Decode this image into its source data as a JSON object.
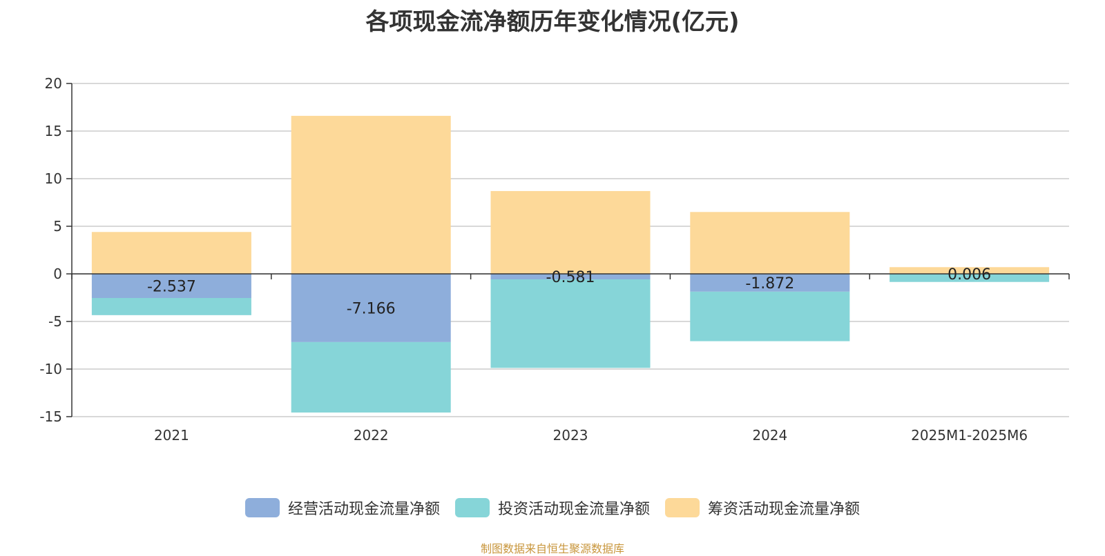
{
  "chart_data": {
    "type": "bar",
    "stacked": true,
    "title": "各项现金流净额历年变化情况(亿元)",
    "xlabel": "",
    "ylabel": "",
    "ylim": [
      -15,
      20
    ],
    "yticks": [
      20,
      15,
      10,
      5,
      0,
      -5,
      -10,
      -15
    ],
    "categories": [
      "2021",
      "2022",
      "2023",
      "2024",
      "2025M1-2025M6"
    ],
    "series": [
      {
        "name": "经营活动现金流量净额",
        "color": "#8eaedb",
        "values": [
          -2.537,
          -7.166,
          -0.581,
          -1.872,
          0.006
        ]
      },
      {
        "name": "投资活动现金流量净额",
        "color": "#86d5d8",
        "values": [
          -1.8,
          -7.4,
          -9.3,
          -5.2,
          -0.85
        ]
      },
      {
        "name": "筹资活动现金流量净额",
        "color": "#fdd999",
        "values": [
          4.4,
          16.6,
          8.7,
          6.5,
          0.7
        ]
      }
    ],
    "data_labels": [
      "-2.537",
      "-7.166",
      "-0.581",
      "-1.872",
      "0.006"
    ],
    "grid": true,
    "legend_position": "bottom-center"
  },
  "source_note": "制图数据来自恒生聚源数据库"
}
